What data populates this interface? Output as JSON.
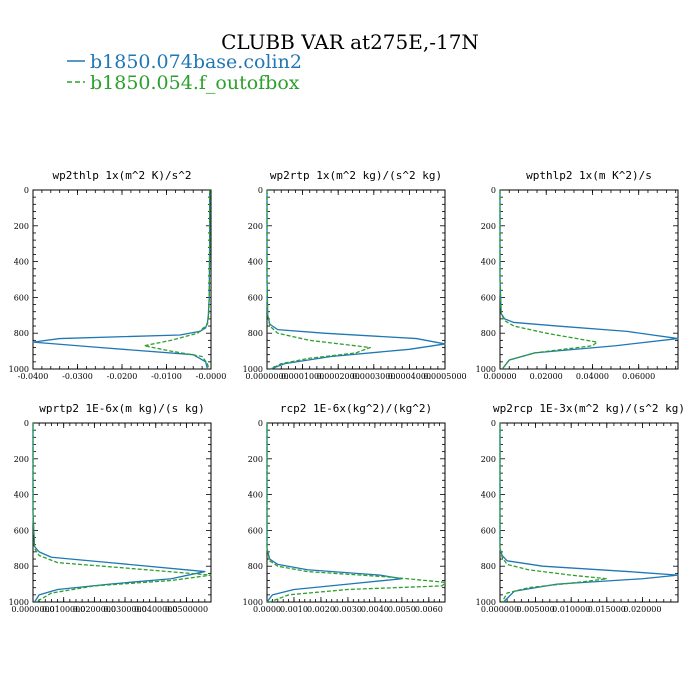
{
  "figure": {
    "title": "CLUBB VAR at275E,-17N",
    "legend": [
      {
        "label": "b1850.074base.colin2",
        "color": "#1f77b4",
        "dash": "solid"
      },
      {
        "label": "b1850.054.f_outofbox",
        "color": "#2ca02c",
        "dash": "dashed"
      }
    ]
  },
  "chart_data": [
    {
      "type": "line",
      "title": "wp2thlp  1x(m^2 K)/s^2",
      "xlim": [
        -0.04,
        0.0
      ],
      "ylim": [
        1000,
        0
      ],
      "xticks": [
        "-0.0400",
        "-0.0300",
        "-0.0200",
        "-0.0100",
        "-0.0000"
      ],
      "xtick_values": [
        -0.04,
        -0.03,
        -0.02,
        -0.01,
        0.0
      ],
      "yticks": [
        "0",
        "200",
        "400",
        "600",
        "800",
        "1000"
      ],
      "ytick_values": [
        0,
        200,
        400,
        600,
        800,
        1000
      ],
      "series": [
        {
          "name": "b1850.074base.colin2",
          "color": "#1f77b4",
          "dash": "solid",
          "x": [
            -0.0003,
            -0.0003,
            -0.0004,
            -0.0006,
            -0.0008,
            -0.0012,
            -0.0025,
            -0.007,
            -0.034,
            -0.04,
            -0.025,
            -0.004,
            -0.0012,
            -0.0008
          ],
          "y": [
            0,
            300,
            600,
            700,
            740,
            770,
            790,
            810,
            830,
            850,
            880,
            920,
            960,
            1000
          ]
        },
        {
          "name": "b1850.054.f_outofbox",
          "color": "#2ca02c",
          "dash": "dashed",
          "x": [
            -0.0003,
            -0.0003,
            -0.0004,
            -0.0005,
            -0.0008,
            -0.003,
            -0.009,
            -0.015,
            -0.009,
            -0.002,
            -0.0008,
            -0.0005
          ],
          "y": [
            0,
            300,
            600,
            700,
            750,
            800,
            840,
            870,
            900,
            930,
            970,
            1000
          ]
        }
      ]
    },
    {
      "type": "line",
      "title": "wp2rtp  1x(m^2 kg)/(s^2 kg)",
      "xlim": [
        0.0,
        0.0005
      ],
      "ylim": [
        1000,
        0
      ],
      "xticks": [
        "0.0000000",
        "0.0001000",
        "0.0002000",
        "0.0003000",
        "0.0004000",
        "0.0005000"
      ],
      "xtick_values": [
        0.0,
        0.0001,
        0.0002,
        0.0003,
        0.0004,
        0.0005
      ],
      "yticks": [
        "0",
        "200",
        "400",
        "600",
        "800",
        "1000"
      ],
      "ytick_values": [
        0,
        200,
        400,
        600,
        800,
        1000
      ],
      "series": [
        {
          "name": "b1850.074base.colin2",
          "color": "#1f77b4",
          "dash": "solid",
          "x": [
            0.0,
            0.0,
            2e-06,
            8e-06,
            3e-05,
            0.00016,
            0.00042,
            0.0005,
            0.0004,
            0.00018,
            5e-05,
            1e-05
          ],
          "y": [
            0,
            500,
            700,
            750,
            780,
            800,
            830,
            860,
            890,
            930,
            970,
            1000
          ]
        },
        {
          "name": "b1850.054.f_outofbox",
          "color": "#2ca02c",
          "dash": "dashed",
          "x": [
            0.0,
            0.0,
            2e-06,
            8e-06,
            3e-05,
            0.00012,
            0.00029,
            0.00025,
            0.00012,
            4e-05,
            1e-05
          ],
          "y": [
            0,
            500,
            700,
            760,
            800,
            840,
            880,
            910,
            940,
            970,
            1000
          ]
        }
      ]
    },
    {
      "type": "line",
      "title": "wpthlp2  1x(m K^2)/s",
      "xlim": [
        0.0,
        0.077
      ],
      "ylim": [
        1000,
        0
      ],
      "xticks": [
        "0.00000",
        "0.02000",
        "0.04000",
        "0.06000"
      ],
      "xtick_values": [
        0.0,
        0.02,
        0.04,
        0.06
      ],
      "yticks": [
        "0",
        "200",
        "400",
        "600",
        "800",
        "1000"
      ],
      "ytick_values": [
        0,
        200,
        400,
        600,
        800,
        1000
      ],
      "series": [
        {
          "name": "b1850.074base.colin2",
          "color": "#1f77b4",
          "dash": "solid",
          "x": [
            0.0,
            0.0,
            0.0005,
            0.002,
            0.006,
            0.025,
            0.055,
            0.077,
            0.05,
            0.015,
            0.004,
            0.001
          ],
          "y": [
            0,
            500,
            690,
            720,
            740,
            760,
            790,
            830,
            870,
            910,
            950,
            1000
          ]
        },
        {
          "name": "b1850.054.f_outofbox",
          "color": "#2ca02c",
          "dash": "dashed",
          "x": [
            0.0,
            0.0,
            0.0005,
            0.002,
            0.006,
            0.02,
            0.042,
            0.04,
            0.015,
            0.004,
            0.001
          ],
          "y": [
            0,
            500,
            690,
            730,
            760,
            800,
            850,
            870,
            910,
            950,
            1000
          ]
        }
      ]
    },
    {
      "type": "line",
      "title": "wprtp2  1E-6x(m kg)/(s kg)",
      "xlim": [
        0.0,
        0.058
      ],
      "ylim": [
        1000,
        0
      ],
      "xticks": [
        "0.0000000",
        "0.0100000",
        "0.0200000",
        "0.0300000",
        "0.0400000",
        "0.0500000"
      ],
      "xtick_values": [
        0.0,
        0.01,
        0.02,
        0.03,
        0.04,
        0.05
      ],
      "yticks": [
        "0",
        "200",
        "400",
        "600",
        "800",
        "1000"
      ],
      "ytick_values": [
        0,
        200,
        400,
        600,
        800,
        1000
      ],
      "series": [
        {
          "name": "b1850.074base.colin2",
          "color": "#1f77b4",
          "dash": "solid",
          "x": [
            0.0,
            0.0,
            0.0005,
            0.002,
            0.006,
            0.025,
            0.056,
            0.045,
            0.025,
            0.008,
            0.002,
            0.0005
          ],
          "y": [
            0,
            500,
            690,
            720,
            750,
            780,
            830,
            870,
            900,
            930,
            960,
            1000
          ]
        },
        {
          "name": "b1850.054.f_outofbox",
          "color": "#2ca02c",
          "dash": "dashed",
          "x": [
            0.0,
            0.0,
            0.0005,
            0.002,
            0.008,
            0.03,
            0.058,
            0.045,
            0.02,
            0.006,
            0.001
          ],
          "y": [
            0,
            500,
            700,
            740,
            780,
            810,
            850,
            880,
            910,
            950,
            1000
          ]
        }
      ]
    },
    {
      "type": "line",
      "title": "rcp2  1E-6x(kg^2)/(kg^2)",
      "xlim": [
        0.0,
        0.0066
      ],
      "ylim": [
        1000,
        0
      ],
      "xticks": [
        "0.0000",
        "0.0010",
        "0.0020",
        "0.0030",
        "0.0040",
        "0.0050",
        "0.0060"
      ],
      "xtick_values": [
        0.0,
        0.001,
        0.002,
        0.003,
        0.004,
        0.005,
        0.006
      ],
      "yticks": [
        "0",
        "200",
        "400",
        "600",
        "800",
        "1000"
      ],
      "ytick_values": [
        0,
        200,
        400,
        600,
        800,
        1000
      ],
      "series": [
        {
          "name": "b1850.074base.colin2",
          "color": "#1f77b4",
          "dash": "solid",
          "x": [
            0.0,
            0.0,
            0.0001,
            0.0004,
            0.0015,
            0.0042,
            0.005,
            0.003,
            0.001,
            0.0002,
            0.0
          ],
          "y": [
            0,
            700,
            760,
            790,
            820,
            850,
            870,
            900,
            930,
            960,
            1000
          ]
        },
        {
          "name": "b1850.054.f_outofbox",
          "color": "#2ca02c",
          "dash": "dashed",
          "x": [
            0.0,
            0.0,
            0.0001,
            0.0004,
            0.0015,
            0.0045,
            0.0066,
            0.0065,
            0.003,
            0.0008,
            0.0001
          ],
          "y": [
            0,
            700,
            770,
            800,
            830,
            860,
            890,
            910,
            930,
            960,
            1000
          ]
        }
      ]
    },
    {
      "type": "line",
      "title": "wp2rcp  1E-3x(m^2 kg)/(s^2 kg)",
      "xlim": [
        0.0,
        0.025
      ],
      "ylim": [
        1000,
        0
      ],
      "xticks": [
        "0.000000",
        "0.005000",
        "0.010000",
        "0.015000",
        "0.020000"
      ],
      "xtick_values": [
        0.0,
        0.005,
        0.01,
        0.015,
        0.02
      ],
      "yticks": [
        "0",
        "200",
        "400",
        "600",
        "800",
        "1000"
      ],
      "ytick_values": [
        0,
        200,
        400,
        600,
        800,
        1000
      ],
      "series": [
        {
          "name": "b1850.074base.colin2",
          "color": "#1f77b4",
          "dash": "solid",
          "x": [
            0.0,
            0.0,
            0.0003,
            0.001,
            0.006,
            0.018,
            0.025,
            0.02,
            0.008,
            0.002,
            0.0005
          ],
          "y": [
            0,
            700,
            740,
            770,
            800,
            830,
            850,
            870,
            900,
            940,
            1000
          ]
        },
        {
          "name": "b1850.054.f_outofbox",
          "color": "#2ca02c",
          "dash": "dashed",
          "x": [
            0.0,
            0.0,
            0.0003,
            0.001,
            0.004,
            0.01,
            0.015,
            0.011,
            0.004,
            0.001,
            0.0003
          ],
          "y": [
            0,
            700,
            750,
            790,
            820,
            850,
            870,
            890,
            920,
            950,
            1000
          ]
        }
      ]
    }
  ]
}
